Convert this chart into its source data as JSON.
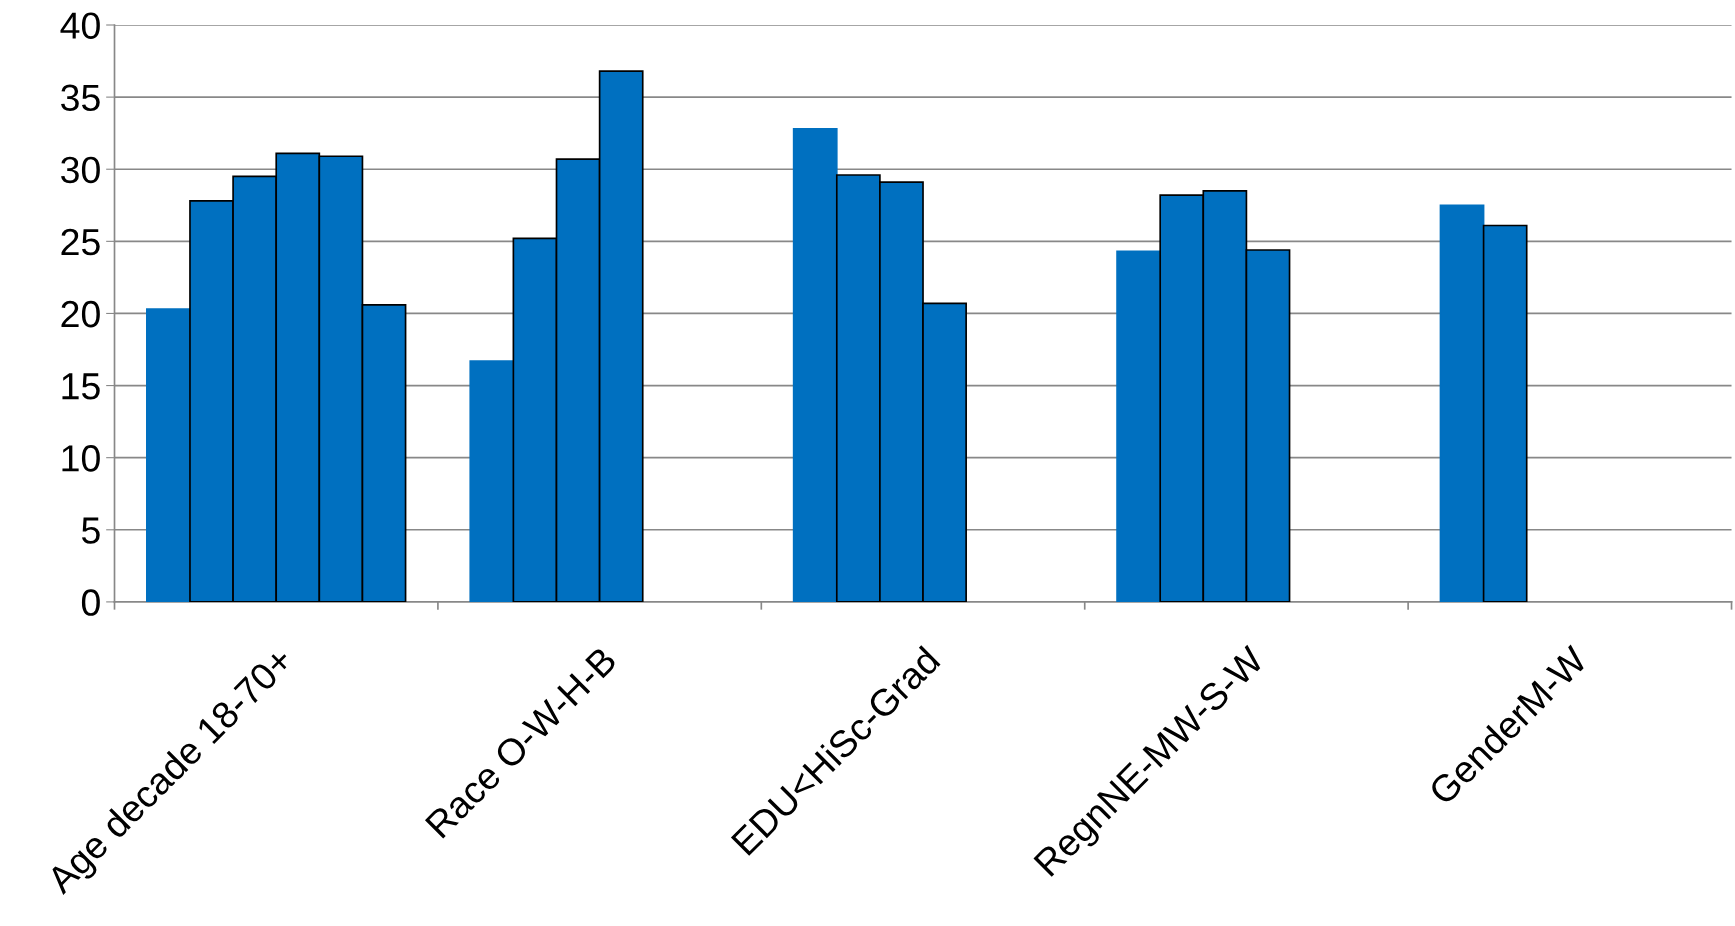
{
  "chart_data": {
    "type": "bar",
    "categories": [
      "Age decade 18-70+",
      "Race O-W-H-B",
      "EDU<HiSc-Grad",
      "RegnNE-MW-S-W",
      "GenderM-W"
    ],
    "series": [
      {
        "color": "#0070c0",
        "values": [
          20.3,
          16.7,
          32.8,
          24.3,
          27.5
        ]
      },
      {
        "color": "#0070c0",
        "values": [
          27.8,
          25.2,
          29.6,
          28.2,
          26.1
        ]
      },
      {
        "color": "#0070c0",
        "values": [
          29.5,
          30.7,
          29.1,
          28.5,
          null
        ]
      },
      {
        "color": "#0070c0",
        "values": [
          31.1,
          36.8,
          20.7,
          24.4,
          null
        ]
      },
      {
        "color": "#0070c0",
        "values": [
          30.9,
          null,
          null,
          null,
          null
        ]
      },
      {
        "color": "#0070c0",
        "values": [
          20.6,
          null,
          null,
          null,
          null
        ]
      }
    ],
    "ylim": [
      0,
      40
    ],
    "yticks": [
      0,
      5,
      10,
      15,
      20,
      25,
      30,
      35,
      40
    ],
    "grid": "y",
    "legend": false
  }
}
